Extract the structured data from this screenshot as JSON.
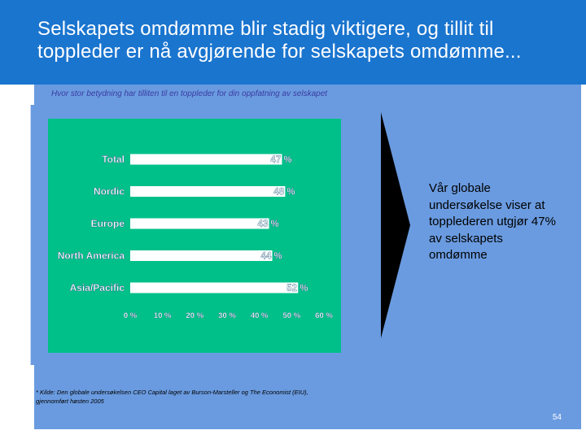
{
  "slide": {
    "title": "Selskapets omdømme blir stadig viktigere, og tillit til toppleder er nå avgjørende for selskapets omdømme...",
    "subtitle": "Hvor stor betydning har tilliten til en toppleder for din oppfatning av selskapet",
    "side_text": "Vår globale undersøkelse viser at topplederen utgjør 47% av selskapets omdømme",
    "footnote_line1": "* Kilde: Den globale undersøkelsen CEO Capital laget av Burson-Marsteller og The Economist (EIU),",
    "footnote_line2": "gjennomført høsten 2005",
    "page_number": "54"
  },
  "colors": {
    "header": "#1a75cf",
    "panel": "#6a9be0",
    "chart_background": "#00c08a",
    "bar": "#ffffff",
    "label_text": "#ffffff"
  },
  "chart_data": {
    "type": "bar",
    "orientation": "horizontal",
    "categories": [
      "Total",
      "Nordic",
      "Europe",
      "North America",
      "Asia/Pacific"
    ],
    "values": [
      47,
      48,
      43,
      44,
      52
    ],
    "value_labels": [
      "47 %",
      "48 %",
      "43 %",
      "44 %",
      "52 %"
    ],
    "xlim": [
      0,
      60
    ],
    "xticks": [
      0,
      10,
      20,
      30,
      40,
      50,
      60
    ],
    "xtick_labels": [
      "0 %",
      "10 %",
      "20 %",
      "30 %",
      "40 %",
      "50 %",
      "60 %"
    ],
    "title": "",
    "xlabel": "",
    "ylabel": "",
    "grid": false,
    "legend": "none"
  }
}
